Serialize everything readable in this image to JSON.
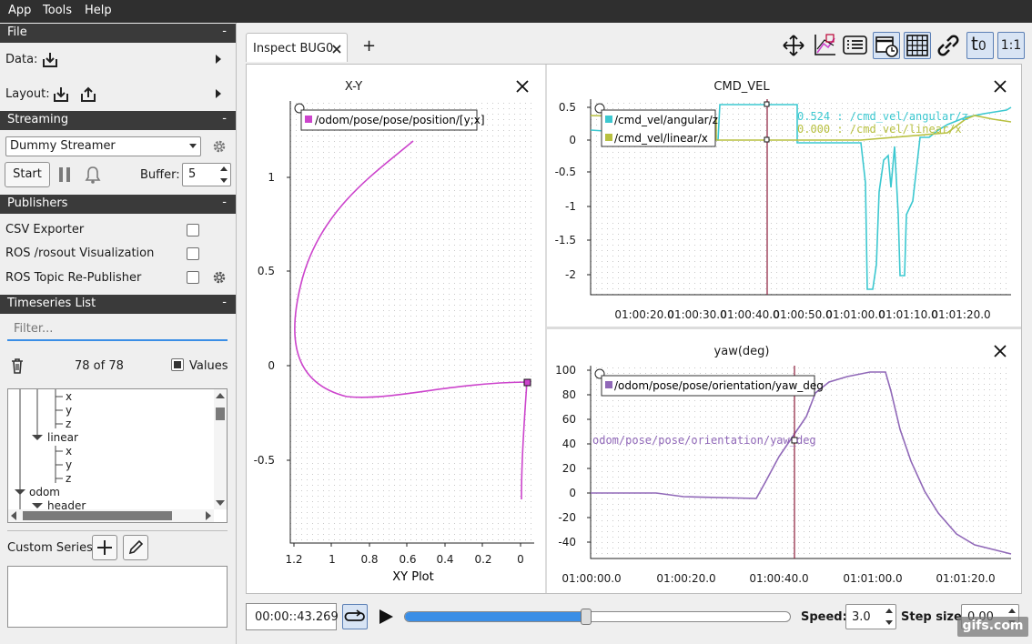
{
  "menu": [
    "App",
    "Tools",
    "Help"
  ],
  "left": {
    "file_header": "File",
    "data_label": "Data:",
    "layout_label": "Layout:",
    "streaming_header": "Streaming",
    "streamer_select": "Dummy Streamer",
    "start_button": "Start",
    "buffer_label": "Buffer:",
    "buffer_value": "5",
    "publishers_header": "Publishers",
    "publishers": [
      "CSV Exporter",
      "ROS /rosout Visualization",
      "ROS Topic Re-Publisher"
    ],
    "timeseries_header": "Timeseries List",
    "filter_placeholder": "Filter...",
    "count": "78 of 78",
    "values_label": "Values",
    "tree": [
      "x",
      "y",
      "z",
      "linear",
      "x",
      "y",
      "z",
      "odom",
      "header"
    ],
    "custom_series_label": "Custom Series:",
    "collapse_glyph": "-"
  },
  "tabs": {
    "active_tab": "Inspect BUG0",
    "add_tab": "+"
  },
  "toolbar_icons": [
    "move-icon",
    "chart-style-icon",
    "list-icon",
    "calendar-clock-icon",
    "grid-icon",
    "link-icon",
    "time-offset-icon",
    "ratio-icon"
  ],
  "toolbar_text": {
    "t0": "t",
    "t0_sub": "0",
    "ratio": "1:1"
  },
  "xy_plot": {
    "title": "X-Y",
    "legend": "/odom/pose/pose/position/[y;x]",
    "xlabel": "XY Plot",
    "x_ticks": [
      "1.2",
      "1",
      "0.8",
      "0.6",
      "0.4",
      "0.2",
      "0"
    ],
    "y_ticks": [
      "1",
      "0.5",
      "0",
      "-0.5"
    ]
  },
  "cmd_vel": {
    "title": "CMD_VEL",
    "legend": [
      "/cmd_vel/angular/z",
      "/cmd_vel/linear/x"
    ],
    "readout": [
      "0.524 : /cmd_vel/angular/z",
      "0.000 : /cmd_vel/linear/x"
    ],
    "y_ticks": [
      "0.5",
      "0",
      "-0.5",
      "-1",
      "-1.5",
      "-2"
    ],
    "x_ticks": [
      "01:00:20.0",
      "01:00:30.0",
      "01:00:40.0",
      "01:00:50.0",
      "01:01:00.0",
      "01:01:10.0",
      "01:01:20.0"
    ]
  },
  "yaw": {
    "title": "yaw(deg)",
    "legend": "/odom/pose/pose/orientation/yaw_deg",
    "readout": "odom/pose/pose/orientation/yaw_deg",
    "y_ticks": [
      "100",
      "80",
      "60",
      "40",
      "20",
      "0",
      "-20",
      "-40"
    ],
    "x_ticks": [
      "01:00:00.0",
      "01:00:20.0",
      "01:00:40.0",
      "01:01:00.0",
      "01:01:20.0"
    ]
  },
  "playback": {
    "time": "00:00::43.269",
    "speed_label": "Speed:",
    "speed_value": "3.0",
    "step_label": "Step size:",
    "step_value": "0.00",
    "progress": 0.47
  },
  "watermark": "gifs.com",
  "colors": {
    "magenta": "#cc44cc",
    "cyan": "#3cc8d0",
    "olive": "#b8c040",
    "purple": "#9068b8",
    "cursor": "#8b1a3a",
    "accent": "#3a8ee6"
  }
}
